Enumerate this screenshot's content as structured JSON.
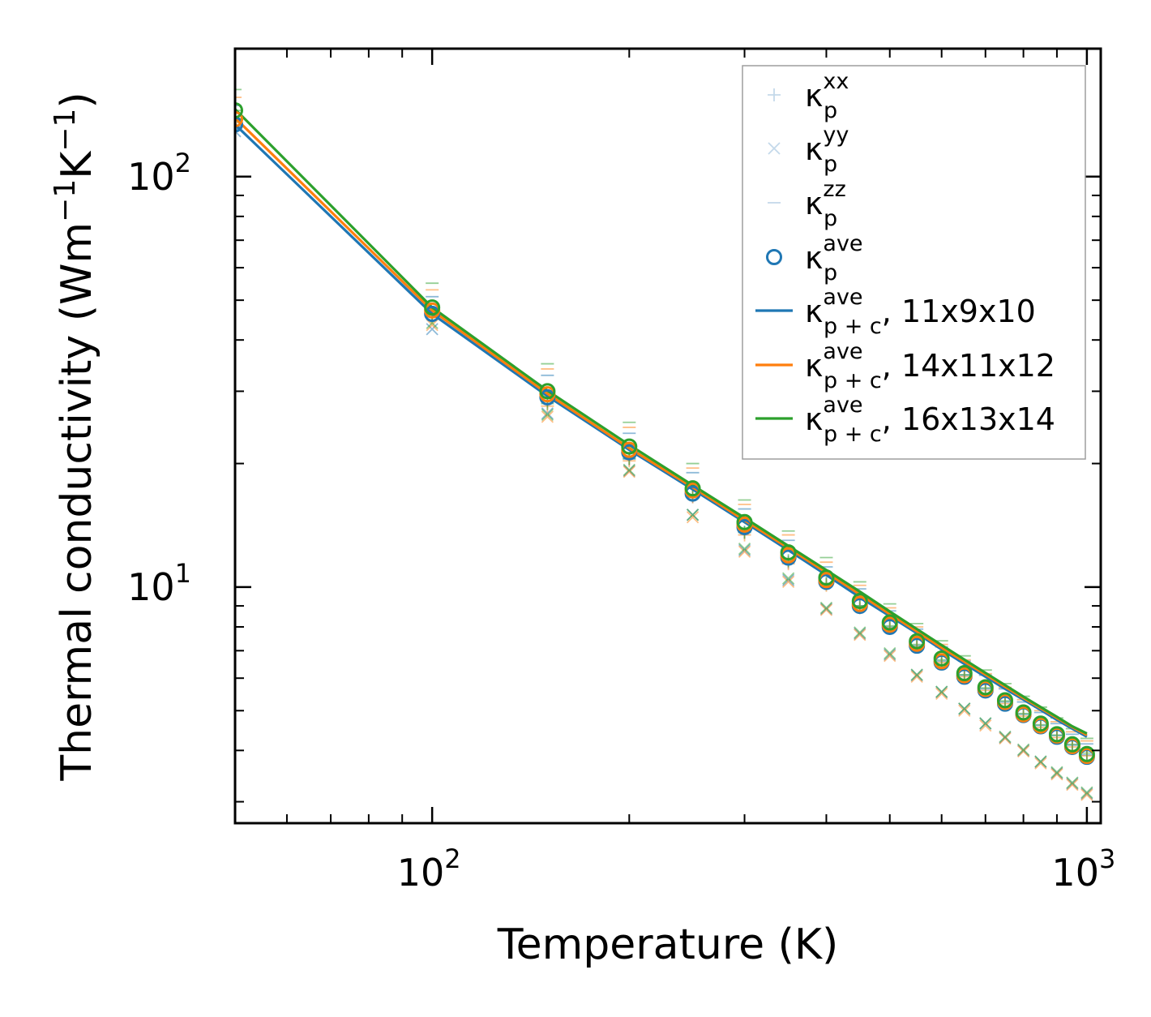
{
  "chart_data": {
    "type": "scatter",
    "xscale": "log",
    "yscale": "log",
    "xlim": [
      50,
      1050
    ],
    "ylim": [
      2.66,
      205
    ],
    "xlabel": "Temperature (K)",
    "ylabel": {
      "main": "Thermal conductivity (Wm",
      "sup1": "−1",
      "mid": "K",
      "sup2": "−1",
      "end": ")"
    },
    "x_ticks": [
      {
        "value": 100,
        "base": "10",
        "exp": "2"
      },
      {
        "value": 1000,
        "base": "10",
        "exp": "3"
      }
    ],
    "y_ticks": [
      {
        "value": 10,
        "base": "10",
        "exp": "1"
      },
      {
        "value": 100,
        "base": "10",
        "exp": "2"
      }
    ],
    "x_minor_ticks": [
      60,
      70,
      80,
      90,
      200,
      300,
      400,
      500,
      600,
      700,
      800,
      900
    ],
    "y_minor_ticks": [
      3,
      4,
      5,
      6,
      7,
      8,
      9,
      20,
      30,
      40,
      50,
      60,
      70,
      80,
      90
    ],
    "temperatures": [
      50,
      100,
      150,
      200,
      250,
      300,
      350,
      400,
      450,
      500,
      550,
      600,
      650,
      700,
      750,
      800,
      850,
      900,
      950,
      1000
    ],
    "series": [
      {
        "name": "11x9x10",
        "color": "#1f77b4",
        "kxx": [
          131,
          46.5,
          28.4,
          20.5,
          16.6,
          13.6,
          11.5,
          10.2,
          9.0,
          8.0,
          7.2,
          6.6,
          6.1,
          5.65,
          5.25,
          4.9,
          4.6,
          4.35,
          4.12,
          3.9
        ],
        "kyy": [
          129,
          42.5,
          26.5,
          19.2,
          15.0,
          12.3,
          10.4,
          8.85,
          7.7,
          6.85,
          6.1,
          5.55,
          5.05,
          4.65,
          4.3,
          4.0,
          3.75,
          3.52,
          3.32,
          3.14
        ],
        "kzz": [
          149,
          51.0,
          32.8,
          23.7,
          19.0,
          15.5,
          13.0,
          11.2,
          9.9,
          8.75,
          7.9,
          7.15,
          6.6,
          6.1,
          5.65,
          5.25,
          4.95,
          4.65,
          4.38,
          4.15
        ],
        "kave": [
          134,
          46.3,
          29.0,
          21.3,
          16.9,
          14.0,
          11.8,
          10.3,
          9.0,
          8.0,
          7.2,
          6.55,
          6.05,
          5.6,
          5.2,
          4.88,
          4.58,
          4.32,
          4.08,
          3.86
        ],
        "kpc": [
          134,
          46.3,
          29.2,
          21.6,
          17.3,
          14.4,
          12.3,
          10.7,
          9.45,
          8.5,
          7.72,
          7.05,
          6.5,
          6.05,
          5.65,
          5.32,
          5.02,
          4.75,
          4.52,
          4.32
        ]
      },
      {
        "name": "14x11x12",
        "color": "#ff7f0e",
        "kxx": [
          138,
          45.5,
          27.6,
          20.3,
          16.6,
          13.4,
          11.4,
          10.1,
          8.9,
          7.95,
          7.15,
          6.55,
          6.05,
          5.6,
          5.2,
          4.85,
          4.55,
          4.3,
          4.08,
          3.88
        ],
        "kyy": [
          134,
          43.5,
          26.0,
          19.1,
          14.8,
          12.2,
          10.3,
          8.8,
          7.65,
          6.8,
          6.05,
          5.5,
          5.0,
          4.6,
          4.28,
          3.98,
          3.72,
          3.5,
          3.3,
          3.12
        ],
        "kzz": [
          156,
          53.0,
          34.0,
          24.5,
          19.5,
          15.9,
          13.4,
          11.5,
          10.1,
          8.9,
          8.0,
          7.25,
          6.65,
          6.15,
          5.7,
          5.32,
          5.0,
          4.7,
          4.44,
          4.22
        ],
        "kave": [
          138,
          47.2,
          29.5,
          21.6,
          17.2,
          14.2,
          11.95,
          10.4,
          9.1,
          8.1,
          7.28,
          6.6,
          6.1,
          5.65,
          5.25,
          4.9,
          4.6,
          4.35,
          4.1,
          3.88
        ],
        "kpc": [
          139,
          47.2,
          29.6,
          21.8,
          17.5,
          14.55,
          12.45,
          10.85,
          9.6,
          8.6,
          7.8,
          7.12,
          6.58,
          6.12,
          5.72,
          5.37,
          5.07,
          4.8,
          4.56,
          4.36
        ]
      },
      {
        "name": "16x13x14",
        "color": "#2ca02c",
        "kxx": [
          145,
          46.0,
          28.0,
          20.6,
          16.8,
          13.6,
          11.6,
          10.2,
          9.0,
          8.05,
          7.25,
          6.65,
          6.12,
          5.68,
          5.28,
          4.92,
          4.62,
          4.36,
          4.14,
          3.94
        ],
        "kyy": [
          138,
          44.0,
          26.3,
          19.3,
          15.0,
          12.4,
          10.5,
          8.9,
          7.75,
          6.9,
          6.12,
          5.56,
          5.06,
          4.66,
          4.32,
          4.02,
          3.76,
          3.54,
          3.34,
          3.16
        ],
        "kzz": [
          163,
          55.0,
          35.0,
          25.2,
          20.0,
          16.3,
          13.7,
          11.8,
          10.3,
          9.1,
          8.15,
          7.4,
          6.8,
          6.28,
          5.82,
          5.42,
          5.1,
          4.8,
          4.52,
          4.28
        ],
        "kave": [
          145,
          48.0,
          30.0,
          22.0,
          17.4,
          14.4,
          12.15,
          10.55,
          9.25,
          8.2,
          7.38,
          6.7,
          6.17,
          5.7,
          5.3,
          4.95,
          4.65,
          4.38,
          4.14,
          3.92
        ],
        "kpc": [
          146,
          48.0,
          30.1,
          22.2,
          17.7,
          14.75,
          12.6,
          11.0,
          9.75,
          8.72,
          7.9,
          7.22,
          6.66,
          6.18,
          5.77,
          5.41,
          5.1,
          4.83,
          4.58,
          4.4
        ]
      }
    ],
    "legend": {
      "position": "top-right",
      "entries": [
        {
          "marker": "plus",
          "label": "κ",
          "sub": "p",
          "sup": "xx",
          "color": "#8ab4d6"
        },
        {
          "marker": "cross",
          "label": "κ",
          "sub": "p",
          "sup": "yy",
          "color": "#8ab4d6"
        },
        {
          "marker": "dash",
          "label": "κ",
          "sub": "p",
          "sup": "zz",
          "color": "#8ab4d6"
        },
        {
          "marker": "circle",
          "label": "κ",
          "sub": "p",
          "sup": "ave",
          "color": "#1f77b4"
        },
        {
          "marker": "line",
          "label": "κ",
          "sub": "p + c",
          "sup": "ave",
          "suffix": ", 11x9x10",
          "color": "#1f77b4"
        },
        {
          "marker": "line",
          "label": "κ",
          "sub": "p + c",
          "sup": "ave",
          "suffix": ", 14x11x12",
          "color": "#ff7f0e"
        },
        {
          "marker": "line",
          "label": "κ",
          "sub": "p + c",
          "sup": "ave",
          "suffix": ", 16x13x14",
          "color": "#2ca02c"
        }
      ]
    }
  }
}
